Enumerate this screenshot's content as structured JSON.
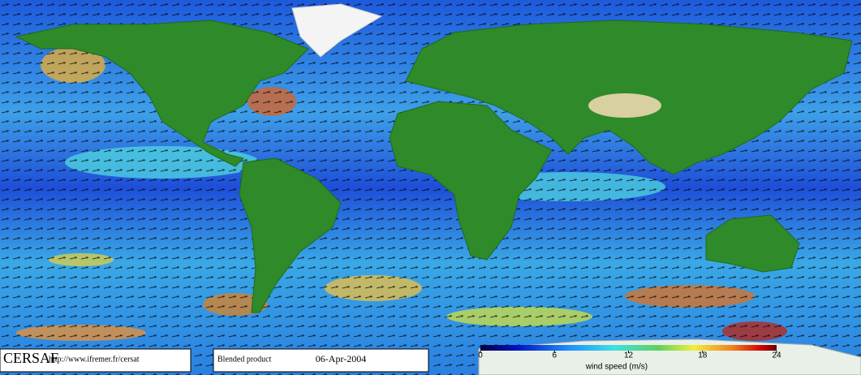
{
  "footer": {
    "logo": "CERSAF",
    "url": "http://www.ifremer.fr/cersat",
    "product": "Blended product",
    "date": "06-Apr-2004"
  },
  "colorbar": {
    "lim": [
      0,
      24
    ],
    "ticks": [
      0,
      6,
      12,
      18,
      24
    ],
    "label": "wind speed (m/s)"
  }
}
